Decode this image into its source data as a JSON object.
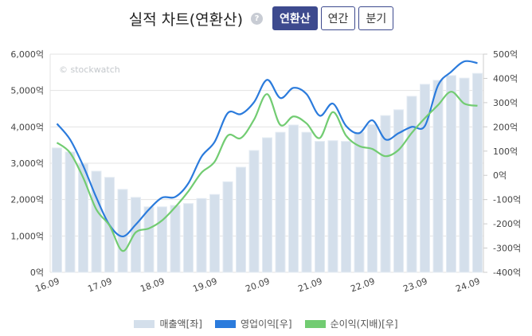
{
  "header": {
    "title": "실적 차트(연환산)",
    "help_icon": "?",
    "buttons": [
      {
        "label": "연환산",
        "active": true
      },
      {
        "label": "연간",
        "active": false
      },
      {
        "label": "분기",
        "active": false
      }
    ]
  },
  "watermark": "© stockwatch",
  "chart_data": {
    "type": "bar+line",
    "title": "실적 차트(연환산)",
    "categories": [
      "16.09",
      "16.12",
      "17.03",
      "17.06",
      "17.09",
      "17.12",
      "18.03",
      "18.06",
      "18.09",
      "18.12",
      "19.03",
      "19.06",
      "19.09",
      "19.12",
      "20.03",
      "20.06",
      "20.09",
      "20.12",
      "21.03",
      "21.06",
      "21.09",
      "21.12",
      "22.03",
      "22.06",
      "22.09",
      "22.12",
      "23.03",
      "23.06",
      "23.09",
      "23.12",
      "24.03",
      "24.06",
      "24.09"
    ],
    "x_tick_labels": [
      "16.09",
      "17.09",
      "18.09",
      "19.09",
      "20.09",
      "21.09",
      "22.09",
      "23.09",
      "24.09"
    ],
    "left_axis": {
      "ylim": [
        0,
        6000
      ],
      "ticks": [
        "0억",
        "1,000억",
        "2,000억",
        "3,000억",
        "4,000억",
        "5,000억",
        "6,000억"
      ]
    },
    "right_axis": {
      "ylim": [
        -400,
        500
      ],
      "ticks": [
        "-400억",
        "-300억",
        "-200억",
        "-100억",
        "0억",
        "100억",
        "200억",
        "300억",
        "400억",
        "500억"
      ]
    },
    "series": [
      {
        "name": "매출액[좌]",
        "type": "bar",
        "axis": "left",
        "color": "#d4dfeb",
        "values": [
          3420,
          3310,
          2980,
          2780,
          2610,
          2280,
          2060,
          1800,
          1800,
          1840,
          1890,
          2030,
          2140,
          2490,
          2890,
          3350,
          3700,
          3850,
          4050,
          3850,
          3600,
          3620,
          3600,
          3850,
          4060,
          4310,
          4470,
          4840,
          5170,
          5280,
          5410,
          5340,
          5470
        ]
      },
      {
        "name": "영업이익[우]",
        "type": "line",
        "axis": "right",
        "color": "#2b7bdc",
        "values": [
          213,
          148,
          39,
          -92,
          -205,
          -252,
          -203,
          -141,
          -92,
          -89,
          -33,
          77,
          138,
          257,
          253,
          302,
          394,
          319,
          361,
          335,
          246,
          296,
          204,
          174,
          227,
          148,
          174,
          200,
          204,
          371,
          427,
          470,
          463
        ]
      },
      {
        "name": "순이익(지배)[우]",
        "type": "line",
        "axis": "right",
        "color": "#72cc72",
        "values": [
          135,
          93,
          -10,
          -141,
          -207,
          -312,
          -235,
          -219,
          -186,
          -131,
          -66,
          11,
          56,
          164,
          154,
          230,
          335,
          208,
          243,
          214,
          154,
          261,
          164,
          121,
          109,
          79,
          105,
          175,
          236,
          290,
          345,
          296,
          287
        ]
      }
    ],
    "grid": true,
    "legend": "bottom"
  }
}
